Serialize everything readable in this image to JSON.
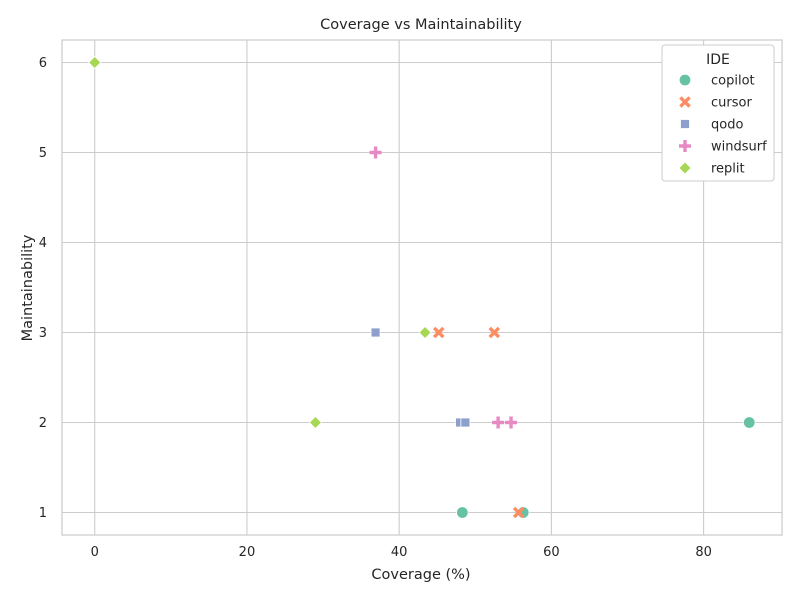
{
  "chart_data": {
    "type": "scatter",
    "title": "Coverage vs Maintainability",
    "xlabel": "Coverage (%)",
    "ylabel": "Maintainability",
    "xlim": [
      -4.3,
      90.3
    ],
    "ylim": [
      0.75,
      6.25
    ],
    "xticks": [
      0,
      20,
      40,
      60,
      80
    ],
    "yticks": [
      1,
      2,
      3,
      4,
      5,
      6
    ],
    "grid": true,
    "legend": {
      "title": "IDE",
      "placement": "top-right"
    },
    "series": [
      {
        "name": "copilot",
        "marker": "circle",
        "color": "#66c2a5",
        "points": [
          [
            48.3,
            1
          ],
          [
            56.3,
            1
          ],
          [
            86.0,
            2
          ]
        ]
      },
      {
        "name": "cursor",
        "marker": "x",
        "color": "#fc8d62",
        "points": [
          [
            45.2,
            3
          ],
          [
            52.5,
            3
          ],
          [
            55.7,
            1
          ]
        ]
      },
      {
        "name": "qodo",
        "marker": "square",
        "color": "#8da0cb",
        "points": [
          [
            36.9,
            3
          ],
          [
            48.0,
            2
          ],
          [
            48.7,
            2
          ]
        ]
      },
      {
        "name": "windsurf",
        "marker": "plus",
        "color": "#e78ac3",
        "points": [
          [
            36.9,
            5
          ],
          [
            53.0,
            2
          ],
          [
            54.7,
            2
          ]
        ]
      },
      {
        "name": "replit",
        "marker": "diamond",
        "color": "#a6d854",
        "points": [
          [
            0,
            6
          ],
          [
            43.4,
            3
          ],
          [
            29.0,
            2
          ]
        ]
      }
    ]
  }
}
